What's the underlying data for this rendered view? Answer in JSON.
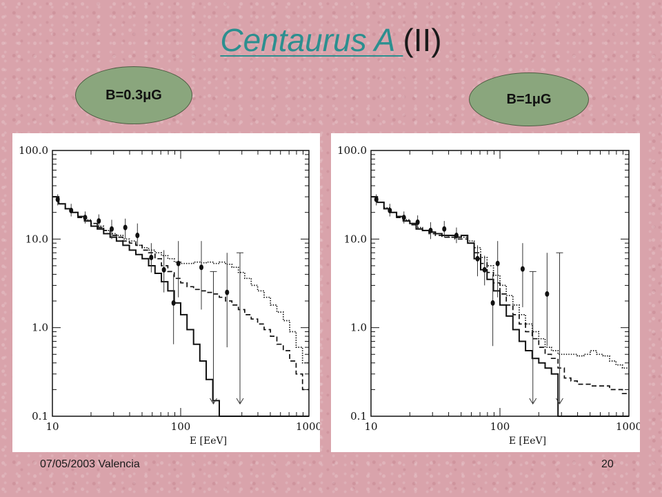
{
  "slide": {
    "title_link": "Centaurus A ",
    "title_rest": "(II)",
    "badge_left": "B=0.3μG",
    "badge_right": "B=1μG",
    "footer_left": "07/05/2003 Valencia",
    "footer_right": "20"
  },
  "colors": {
    "background": "#d9a3ab",
    "badge_fill": "#8aa67d",
    "title_link": "#2c8f8f"
  },
  "chart_data": [
    {
      "type": "scatter",
      "x_scale": "log",
      "y_scale": "log",
      "xlim": [
        10,
        1000
      ],
      "ylim": [
        0.1,
        100
      ],
      "xlabel": "E [EeV]",
      "ylabel": "",
      "x_ticks": [
        "10",
        "100",
        "1000"
      ],
      "y_ticks": [
        "100.0",
        "10.0",
        "1.0",
        "0.1"
      ],
      "points": [
        {
          "x": 11.0,
          "y": 28.0,
          "lo": 24.0,
          "hi": 32.0
        },
        {
          "x": 14.0,
          "y": 21.0,
          "lo": 18.0,
          "hi": 25.0
        },
        {
          "x": 18.0,
          "y": 17.5,
          "lo": 15.0,
          "hi": 20.5
        },
        {
          "x": 23.0,
          "y": 16.0,
          "lo": 13.0,
          "hi": 19.0
        },
        {
          "x": 29.0,
          "y": 13.0,
          "lo": 10.0,
          "hi": 16.5
        },
        {
          "x": 37.0,
          "y": 13.5,
          "lo": 10.0,
          "hi": 17.0
        },
        {
          "x": 46.0,
          "y": 11.0,
          "lo": 8.5,
          "hi": 15.0
        },
        {
          "x": 59.0,
          "y": 6.2,
          "lo": 4.2,
          "hi": 9.0
        },
        {
          "x": 74.0,
          "y": 4.5,
          "lo": 2.5,
          "hi": 7.5
        },
        {
          "x": 88.0,
          "y": 1.9,
          "lo": 0.65,
          "hi": 4.0
        },
        {
          "x": 96.0,
          "y": 5.3,
          "lo": 2.2,
          "hi": 9.5
        },
        {
          "x": 145.0,
          "y": 4.8,
          "lo": 1.6,
          "hi": 9.5
        },
        {
          "x": 230.0,
          "y": 2.5,
          "lo": 0.6,
          "hi": 7.0
        }
      ],
      "upper_limits": [
        {
          "x": 180.0,
          "y": 4.3
        },
        {
          "x": 290.0,
          "y": 7.0
        }
      ],
      "series": [
        {
          "style": "solid",
          "x": [
            10,
            11.2,
            12.6,
            14.1,
            15.8,
            17.8,
            20,
            22.4,
            25.1,
            28.2,
            31.6,
            35.5,
            39.8,
            44.7,
            50.1,
            56.2,
            63.1,
            70.8,
            79.4,
            89.1,
            100,
            112,
            126,
            141,
            158,
            178,
            200,
            224,
            251,
            282,
            316,
            355,
            398,
            447,
            501,
            562,
            631,
            708,
            794,
            891,
            1000
          ],
          "y": [
            30,
            25,
            22,
            20,
            18,
            16,
            14,
            13,
            11.5,
            10.5,
            9.5,
            8.5,
            7.5,
            6.7,
            6,
            5,
            4.1,
            3.3,
            2.6,
            1.9,
            1.4,
            0.95,
            0.65,
            0.42,
            0.26,
            0.15,
            0.08,
            0.08,
            0.08,
            0.08,
            0.08,
            0.08,
            0.08,
            0.08,
            0.08,
            0.08,
            0.08,
            0.08,
            0.08,
            0.08,
            0.08
          ]
        },
        {
          "style": "dashed",
          "x": [
            10,
            11.2,
            12.6,
            14.1,
            15.8,
            17.8,
            20,
            22.4,
            25.1,
            28.2,
            31.6,
            35.5,
            39.8,
            44.7,
            50.1,
            56.2,
            63.1,
            70.8,
            79.4,
            89.1,
            100,
            112,
            126,
            141,
            158,
            178,
            200,
            224,
            251,
            282,
            316,
            355,
            398,
            447,
            501,
            562,
            631,
            708,
            794,
            891,
            1000
          ],
          "y": [
            30,
            25,
            22,
            20,
            17.5,
            16,
            15,
            13.5,
            12.5,
            11,
            10.5,
            9.5,
            9,
            8.5,
            7.5,
            7,
            6,
            5,
            4.3,
            3.6,
            3.2,
            2.9,
            2.7,
            2.6,
            2.5,
            2.4,
            2.2,
            2.0,
            1.8,
            1.6,
            1.4,
            1.25,
            1.1,
            0.95,
            0.8,
            0.65,
            0.55,
            0.42,
            0.3,
            0.2,
            0.15
          ]
        },
        {
          "style": "dotted",
          "x": [
            10,
            11.2,
            12.6,
            14.1,
            15.8,
            17.8,
            20,
            22.4,
            25.1,
            28.2,
            31.6,
            35.5,
            39.8,
            44.7,
            50.1,
            56.2,
            63.1,
            70.8,
            79.4,
            89.1,
            100,
            112,
            126,
            141,
            158,
            178,
            200,
            224,
            251,
            282,
            316,
            355,
            398,
            447,
            501,
            562,
            631,
            708,
            794,
            891,
            1000
          ],
          "y": [
            30,
            25,
            22,
            20,
            18,
            16.5,
            15,
            14,
            12.5,
            11.5,
            11,
            10,
            9.5,
            8.5,
            8,
            7.5,
            7,
            6.5,
            6,
            5.5,
            5.3,
            5.3,
            5.5,
            5.4,
            5.5,
            5.3,
            5.5,
            5.2,
            4.8,
            4.2,
            3.6,
            3.0,
            2.6,
            2.2,
            1.8,
            1.5,
            1.2,
            0.9,
            0.6,
            0.4,
            0.3
          ]
        }
      ]
    },
    {
      "type": "scatter",
      "x_scale": "log",
      "y_scale": "log",
      "xlim": [
        10,
        1000
      ],
      "ylim": [
        0.1,
        100
      ],
      "xlabel": "E [EeV]",
      "ylabel": "",
      "x_ticks": [
        "10",
        "100",
        "1000"
      ],
      "y_ticks": [
        "100.0",
        "10.0",
        "1.0",
        "0.1"
      ],
      "points": [
        {
          "x": 11.0,
          "y": 28.0,
          "lo": 24.0,
          "hi": 32.0
        },
        {
          "x": 14.0,
          "y": 21.0,
          "lo": 18.0,
          "hi": 25.0
        },
        {
          "x": 18.0,
          "y": 17.5,
          "lo": 15.0,
          "hi": 20.5
        },
        {
          "x": 23.0,
          "y": 15.5,
          "lo": 13.0,
          "hi": 18.5
        },
        {
          "x": 29.0,
          "y": 12.5,
          "lo": 10.0,
          "hi": 15.5
        },
        {
          "x": 37.0,
          "y": 13.0,
          "lo": 10.5,
          "hi": 16.0
        },
        {
          "x": 46.0,
          "y": 11.0,
          "lo": 9.0,
          "hi": 13.5
        },
        {
          "x": 67.0,
          "y": 6.0,
          "lo": 3.8,
          "hi": 8.5
        },
        {
          "x": 76.0,
          "y": 4.5,
          "lo": 3.0,
          "hi": 6.5
        },
        {
          "x": 88.0,
          "y": 1.9,
          "lo": 0.62,
          "hi": 4.0
        },
        {
          "x": 96.0,
          "y": 5.3,
          "lo": 2.2,
          "hi": 9.5
        },
        {
          "x": 150.0,
          "y": 4.6,
          "lo": 1.7,
          "hi": 9.0
        },
        {
          "x": 232.0,
          "y": 2.4,
          "lo": 0.62,
          "hi": 7.0
        }
      ],
      "upper_limits": [
        {
          "x": 180.0,
          "y": 4.3
        },
        {
          "x": 290.0,
          "y": 7.0
        }
      ],
      "series": [
        {
          "style": "solid",
          "x": [
            10,
            11.2,
            12.6,
            14.1,
            15.8,
            17.8,
            20,
            22.4,
            25.1,
            28.2,
            31.6,
            35.5,
            39.8,
            44.7,
            50.1,
            56.2,
            63.1,
            70.8,
            79.4,
            89.1,
            100,
            112,
            126,
            141,
            158,
            178,
            200,
            224,
            251,
            282,
            316,
            355,
            398,
            447,
            501,
            562,
            631,
            708,
            794,
            891,
            1000
          ],
          "y": [
            30,
            26,
            22,
            20,
            18,
            16,
            15,
            13,
            12.5,
            12,
            11.5,
            11,
            11,
            10.5,
            11,
            9,
            6,
            4.5,
            3.5,
            2.6,
            1.8,
            1.35,
            0.95,
            0.7,
            0.55,
            0.45,
            0.4,
            0.35,
            0.3,
            0.08,
            0.08,
            0.08,
            0.08,
            0.08,
            0.08,
            0.08,
            0.08,
            0.08,
            0.08,
            0.08,
            0.08
          ]
        },
        {
          "style": "dashed",
          "x": [
            10,
            11.2,
            12.6,
            14.1,
            15.8,
            17.8,
            20,
            22.4,
            25.1,
            28.2,
            31.6,
            35.5,
            39.8,
            44.7,
            50.1,
            56.2,
            63.1,
            70.8,
            79.4,
            89.1,
            100,
            112,
            126,
            141,
            158,
            178,
            200,
            224,
            251,
            282,
            316,
            355,
            398,
            447,
            501,
            562,
            631,
            708,
            794,
            891,
            1000
          ],
          "y": [
            30,
            26,
            22,
            20,
            17.5,
            16,
            14.5,
            13,
            12.5,
            11.5,
            11,
            10.5,
            10.5,
            10,
            10,
            9,
            7,
            5.3,
            4.2,
            3.2,
            2.4,
            1.8,
            1.4,
            1.1,
            0.9,
            0.75,
            0.6,
            0.5,
            0.45,
            0.35,
            0.27,
            0.25,
            0.23,
            0.23,
            0.22,
            0.22,
            0.22,
            0.2,
            0.2,
            0.18,
            0.18
          ]
        },
        {
          "style": "dotted",
          "x": [
            10,
            11.2,
            12.6,
            14.1,
            15.8,
            17.8,
            20,
            22.4,
            25.1,
            28.2,
            31.6,
            35.5,
            39.8,
            44.7,
            50.1,
            56.2,
            63.1,
            70.8,
            79.4,
            89.1,
            100,
            112,
            126,
            141,
            158,
            178,
            200,
            224,
            251,
            282,
            316,
            355,
            398,
            447,
            501,
            562,
            631,
            708,
            794,
            891,
            1000
          ],
          "y": [
            30,
            26,
            22.5,
            20,
            18,
            16.5,
            15,
            13.5,
            12.5,
            12,
            11.5,
            11,
            10.5,
            10.5,
            10.5,
            9.5,
            8,
            6.2,
            5,
            3.9,
            3,
            2.3,
            1.8,
            1.4,
            1.1,
            0.9,
            0.75,
            0.6,
            0.55,
            0.5,
            0.5,
            0.5,
            0.48,
            0.5,
            0.55,
            0.5,
            0.48,
            0.42,
            0.38,
            0.35,
            0.32
          ]
        }
      ]
    }
  ]
}
